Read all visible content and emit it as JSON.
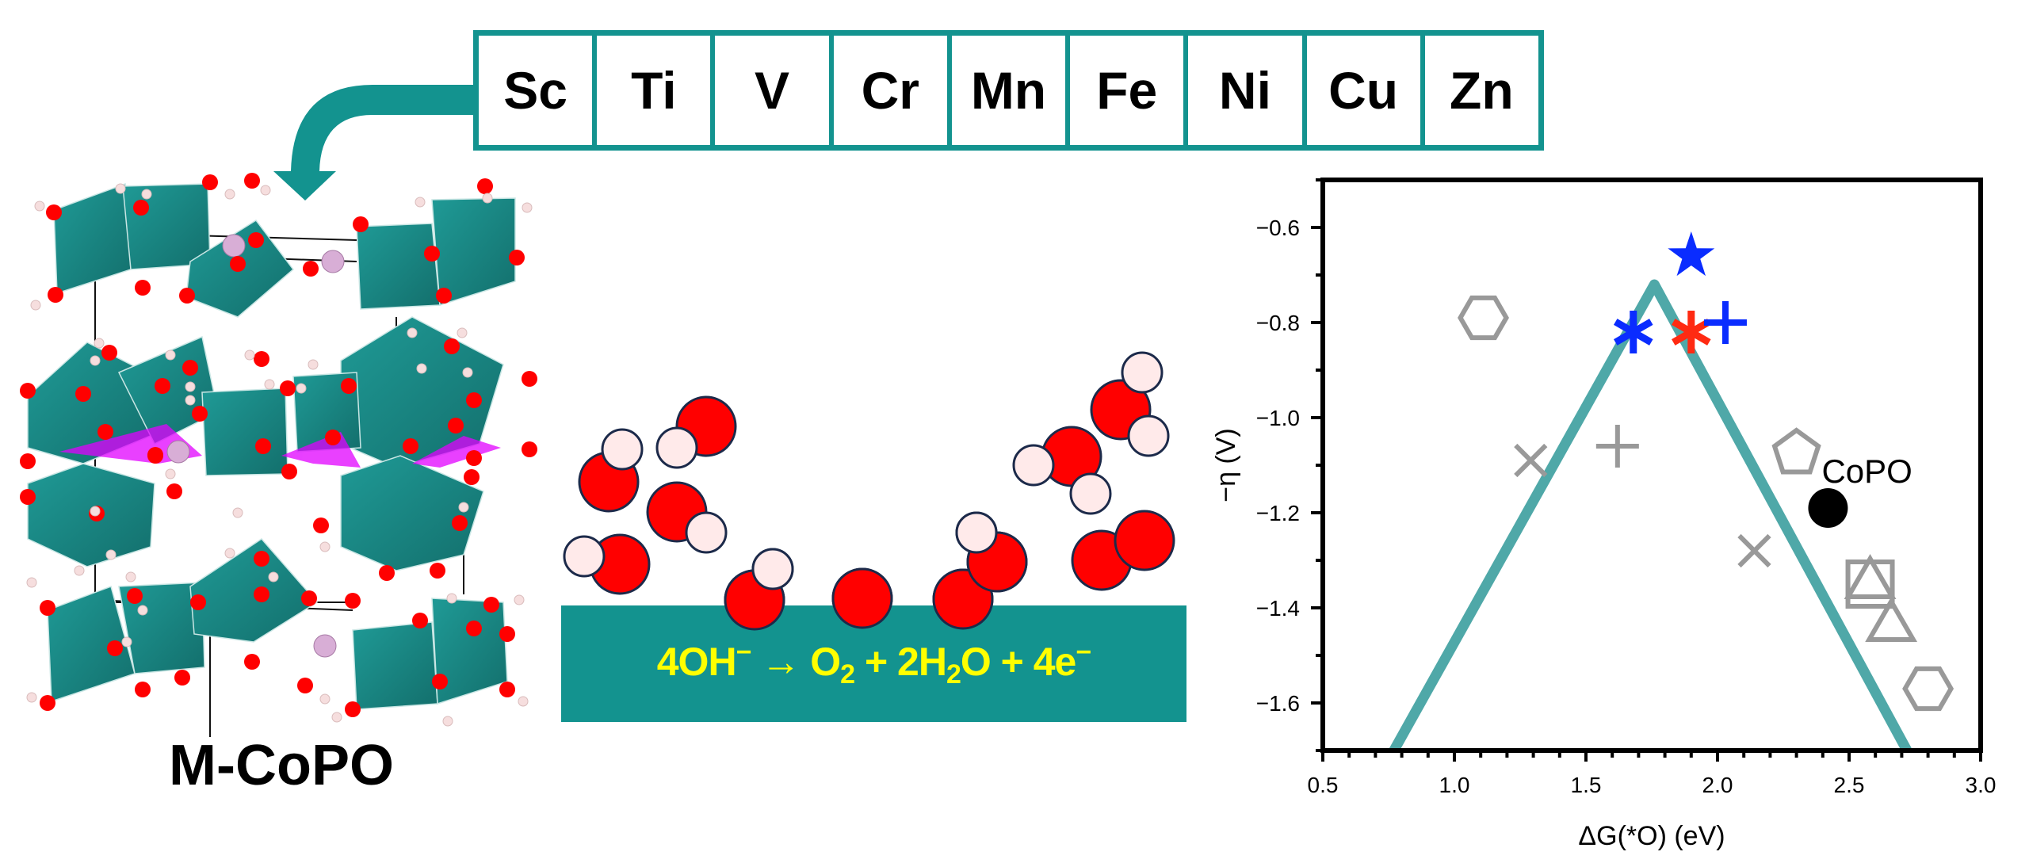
{
  "elements": {
    "items": [
      "Sc",
      "Ti",
      "V",
      "Cr",
      "Mn",
      "Fe",
      "Ni",
      "Cu",
      "Zn"
    ]
  },
  "structure": {
    "label": "M-CoPO"
  },
  "reaction": {
    "equation_parts": {
      "p1": "4OH",
      "p1_sup": "−",
      "arrow": " → ",
      "p2": "O",
      "p2_sub": "2",
      "p3": " + 2H",
      "p3_sub": "2",
      "p4": "O + 4e",
      "p4_sup": "−"
    }
  },
  "colors": {
    "teal": "#13938f",
    "volcano_line": "#4fa8a8",
    "oxygen": "#ff0000",
    "hydrogen": "#ffeaea",
    "atom_outline": "#1c2a4a",
    "gray_marker": "#999999",
    "blue_marker": "#0a2cff",
    "red_marker": "#ff2a12",
    "equation_text": "#ffff00"
  },
  "chart_data": {
    "type": "scatter",
    "title": "",
    "xlabel": "ΔG(*O) (eV)",
    "ylabel": "−η (V)",
    "xlim": [
      0.5,
      3.0
    ],
    "ylim": [
      -1.7,
      -0.5
    ],
    "xticks": [
      "0.5",
      "1.0",
      "1.5",
      "2.0",
      "2.5",
      "3.0"
    ],
    "yticks": [
      "−0.6",
      "−0.8",
      "−1.0",
      "−1.2",
      "−1.4",
      "−1.6"
    ],
    "grid": false,
    "legend": null,
    "volcano_line": {
      "x": [
        0.77,
        1.76,
        2.72
      ],
      "y": [
        -1.7,
        -0.72,
        -1.7
      ]
    },
    "points": [
      {
        "marker": "hexagon",
        "color": "gray",
        "x": 1.11,
        "y": -0.79
      },
      {
        "marker": "x",
        "color": "gray",
        "x": 1.29,
        "y": -1.09
      },
      {
        "marker": "plus",
        "color": "gray",
        "x": 1.62,
        "y": -1.06
      },
      {
        "marker": "asterisk",
        "color": "blue",
        "x": 1.68,
        "y": -0.82
      },
      {
        "marker": "star",
        "color": "blue",
        "x": 1.9,
        "y": -0.66
      },
      {
        "marker": "asterisk",
        "color": "red",
        "x": 1.9,
        "y": -0.82
      },
      {
        "marker": "plus",
        "color": "blue",
        "x": 2.03,
        "y": -0.8
      },
      {
        "marker": "x",
        "color": "gray",
        "x": 2.14,
        "y": -1.28
      },
      {
        "marker": "pentagon",
        "color": "gray",
        "x": 2.3,
        "y": -1.07
      },
      {
        "marker": "circle",
        "color": "black",
        "x": 2.42,
        "y": -1.19,
        "label": "CoPO"
      },
      {
        "marker": "square",
        "color": "gray",
        "x": 2.58,
        "y": -1.35
      },
      {
        "marker": "triangle",
        "color": "gray",
        "x": 2.58,
        "y": -1.34
      },
      {
        "marker": "triangle",
        "color": "gray",
        "x": 2.66,
        "y": -1.43
      },
      {
        "marker": "hexagon",
        "color": "gray",
        "x": 2.8,
        "y": -1.57
      }
    ]
  }
}
